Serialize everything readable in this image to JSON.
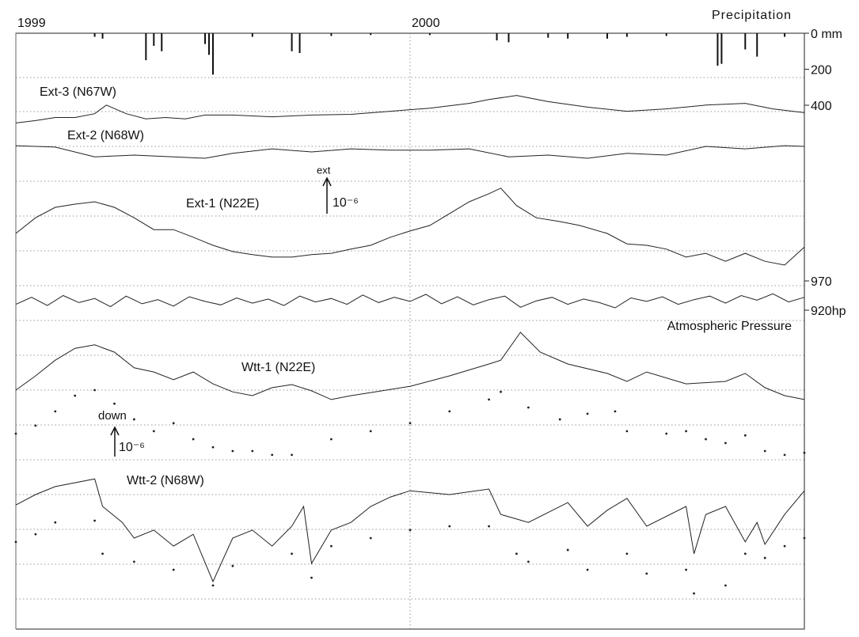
{
  "chart_data": [
    {
      "type": "bar",
      "title": "Precipitation",
      "xlim": [
        1999,
        2001
      ],
      "xticks": [
        1999,
        2000
      ],
      "ylim": [
        0,
        400
      ],
      "yticks": [
        {
          "value": 0,
          "label": "0 mm"
        },
        200,
        400
      ],
      "inverted": true,
      "color": "#111",
      "x": [
        1999.2,
        1999.22,
        1999.33,
        1999.35,
        1999.37,
        1999.48,
        1999.49,
        1999.5,
        1999.6,
        1999.7,
        1999.72,
        1999.8,
        1999.9,
        2000.05,
        2000.22,
        2000.25,
        2000.35,
        2000.4,
        2000.5,
        2000.55,
        2000.65,
        2000.78,
        2000.79,
        2000.85,
        2000.88,
        2000.95
      ],
      "values": [
        20,
        30,
        150,
        70,
        100,
        60,
        120,
        230,
        20,
        100,
        110,
        15,
        10,
        10,
        40,
        50,
        25,
        30,
        30,
        20,
        15,
        180,
        170,
        90,
        130,
        20
      ]
    },
    {
      "type": "line",
      "label": "Ext-3 (N67W)",
      "ylim": [
        0,
        2
      ],
      "color": "#222",
      "x": [
        1999.0,
        1999.05,
        1999.1,
        1999.15,
        1999.2,
        1999.23,
        1999.28,
        1999.33,
        1999.38,
        1999.43,
        1999.48,
        1999.55,
        1999.65,
        1999.75,
        1999.85,
        1999.95,
        2000.05,
        2000.15,
        2000.2,
        2000.27,
        2000.35,
        2000.45,
        2000.55,
        2000.65,
        2000.75,
        2000.85,
        2000.92,
        2001.0
      ],
      "values": [
        0.68,
        0.75,
        0.84,
        0.84,
        0.95,
        1.2,
        0.95,
        0.8,
        0.84,
        0.8,
        0.91,
        0.91,
        0.86,
        0.91,
        0.93,
        1.02,
        1.11,
        1.25,
        1.36,
        1.48,
        1.3,
        1.14,
        1.02,
        1.09,
        1.2,
        1.25,
        1.09,
        0.98
      ]
    },
    {
      "type": "line",
      "label": "Ext-2 (N68W)",
      "ylim": [
        0,
        2
      ],
      "color": "#222",
      "x": [
        1999.0,
        1999.1,
        1999.2,
        1999.3,
        1999.4,
        1999.48,
        1999.55,
        1999.65,
        1999.75,
        1999.85,
        1999.95,
        2000.05,
        2000.15,
        2000.25,
        2000.35,
        2000.45,
        2000.55,
        2000.65,
        2000.75,
        2000.85,
        2000.95,
        2001.0
      ],
      "values": [
        1.02,
        0.98,
        0.7,
        0.75,
        0.7,
        0.66,
        0.8,
        0.93,
        0.84,
        0.93,
        0.89,
        0.89,
        0.93,
        0.7,
        0.75,
        0.66,
        0.8,
        0.75,
        1.0,
        0.93,
        1.02,
        1.0
      ]
    },
    {
      "type": "line",
      "label": "Ext-1 (N22E)",
      "annotations": [
        "ext",
        "10⁻⁶"
      ],
      "ylim": [
        0,
        3
      ],
      "color": "#222",
      "x": [
        1999.0,
        1999.05,
        1999.1,
        1999.15,
        1999.2,
        1999.25,
        1999.3,
        1999.35,
        1999.4,
        1999.45,
        1999.5,
        1999.55,
        1999.6,
        1999.65,
        1999.7,
        1999.75,
        1999.8,
        1999.85,
        1999.9,
        1999.95,
        2000.0,
        2000.05,
        2000.1,
        2000.15,
        2000.2,
        2000.23,
        2000.27,
        2000.32,
        2000.38,
        2000.43,
        2000.5,
        2000.55,
        2000.6,
        2000.65,
        2000.7,
        2000.75,
        2000.8,
        2000.85,
        2000.9,
        2000.95,
        2001.0
      ],
      "values": [
        1.5,
        1.95,
        2.25,
        2.34,
        2.41,
        2.25,
        1.95,
        1.61,
        1.61,
        1.39,
        1.16,
        0.98,
        0.89,
        0.82,
        0.82,
        0.89,
        0.93,
        1.05,
        1.16,
        1.39,
        1.57,
        1.73,
        2.07,
        2.41,
        2.64,
        2.8,
        2.3,
        1.95,
        1.84,
        1.73,
        1.5,
        1.2,
        1.16,
        1.05,
        0.82,
        0.93,
        0.7,
        0.93,
        0.7,
        0.59,
        1.11
      ]
    },
    {
      "type": "line",
      "label": "Atmospheric Pressure",
      "ylim": [
        920,
        970
      ],
      "yticks": [
        970,
        {
          "value": 920,
          "label": "920hp"
        }
      ],
      "color": "#222",
      "x": [
        1999.0,
        1999.04,
        1999.08,
        1999.12,
        1999.16,
        1999.2,
        1999.24,
        1999.28,
        1999.32,
        1999.36,
        1999.4,
        1999.44,
        1999.48,
        1999.52,
        1999.56,
        1999.6,
        1999.64,
        1999.68,
        1999.72,
        1999.76,
        1999.8,
        1999.84,
        1999.88,
        1999.92,
        1999.96,
        2000.0,
        2000.04,
        2000.08,
        2000.12,
        2000.16,
        2000.2,
        2000.24,
        2000.28,
        2000.32,
        2000.36,
        2000.4,
        2000.44,
        2000.48,
        2000.52,
        2000.56,
        2000.6,
        2000.64,
        2000.68,
        2000.72,
        2000.76,
        2000.8,
        2000.84,
        2000.88,
        2000.92,
        2000.96,
        2001.0
      ],
      "values": [
        930,
        942,
        928,
        945,
        933,
        940,
        926,
        944,
        931,
        938,
        927,
        943,
        935,
        929,
        941,
        932,
        939,
        928,
        944,
        934,
        940,
        930,
        946,
        933,
        942,
        935,
        947,
        931,
        943,
        929,
        938,
        944,
        925,
        936,
        942,
        930,
        939,
        933,
        924,
        941,
        935,
        943,
        930,
        938,
        944,
        932,
        945,
        937,
        948,
        934,
        942
      ]
    },
    {
      "type": "line",
      "label": "Wtt-1 (N22E)",
      "ylim": [
        0,
        3
      ],
      "color": "#222",
      "x": [
        1999.0,
        1999.05,
        1999.1,
        1999.15,
        1999.2,
        1999.25,
        1999.3,
        1999.35,
        1999.4,
        1999.45,
        1999.5,
        1999.55,
        1999.6,
        1999.65,
        1999.7,
        1999.75,
        1999.8,
        1999.85,
        1999.9,
        2000.0,
        2000.1,
        2000.2,
        2000.23,
        2000.28,
        2000.33,
        2000.4,
        2000.5,
        2000.55,
        2000.6,
        2000.7,
        2000.8,
        2000.85,
        2000.9,
        2000.95,
        2001.0
      ],
      "values": [
        1.0,
        1.41,
        1.86,
        2.2,
        2.3,
        2.09,
        1.64,
        1.52,
        1.3,
        1.52,
        1.18,
        0.95,
        0.84,
        1.07,
        1.16,
        0.98,
        0.73,
        0.84,
        0.93,
        1.11,
        1.41,
        1.75,
        1.86,
        2.66,
        2.09,
        1.75,
        1.48,
        1.25,
        1.52,
        1.18,
        1.25,
        1.48,
        1.07,
        0.84,
        0.73
      ]
    },
    {
      "type": "scatter",
      "annotations": [
        "down",
        "10⁻⁶"
      ],
      "ylim": [
        0,
        2
      ],
      "color": "#222",
      "x": [
        1999.0,
        1999.05,
        1999.1,
        1999.15,
        1999.2,
        1999.25,
        1999.3,
        1999.35,
        1999.4,
        1999.45,
        1999.5,
        1999.55,
        1999.6,
        1999.65,
        1999.7,
        1999.8,
        1999.9,
        2000.0,
        2000.1,
        2000.2,
        2000.23,
        2000.3,
        2000.38,
        2000.45,
        2000.52,
        2000.55,
        2000.65,
        2000.7,
        2000.75,
        2000.8,
        2000.85,
        2000.9,
        2000.95,
        2001.0
      ],
      "values": [
        0.75,
        0.98,
        1.39,
        1.84,
        2.0,
        1.61,
        1.16,
        0.82,
        1.05,
        0.59,
        0.36,
        0.25,
        0.25,
        0.14,
        0.14,
        0.59,
        0.82,
        1.05,
        1.39,
        1.73,
        1.95,
        1.5,
        1.16,
        1.32,
        1.39,
        0.82,
        0.75,
        0.82,
        0.59,
        0.48,
        0.7,
        0.25,
        0.14,
        0.2
      ]
    },
    {
      "type": "line",
      "label": "Wtt-2 (N68W)",
      "ylim": [
        0,
        4
      ],
      "color": "#222",
      "x": [
        1999.0,
        1999.05,
        1999.1,
        1999.2,
        1999.22,
        1999.27,
        1999.3,
        1999.35,
        1999.4,
        1999.45,
        1999.5,
        1999.55,
        1999.6,
        1999.65,
        1999.7,
        1999.73,
        1999.75,
        1999.8,
        1999.85,
        1999.9,
        1999.95,
        2000.0,
        2000.1,
        2000.2,
        2000.23,
        2000.3,
        2000.4,
        2000.45,
        2000.5,
        2000.55,
        2000.6,
        2000.7,
        2000.72,
        2000.75,
        2000.8,
        2000.85,
        2000.88,
        2000.9,
        2000.95,
        2001.0
      ],
      "values": [
        2.7,
        3.0,
        3.23,
        3.45,
        2.66,
        2.2,
        1.75,
        1.98,
        1.52,
        1.86,
        0.5,
        1.75,
        1.98,
        1.52,
        2.09,
        2.66,
        1.02,
        1.98,
        2.2,
        2.66,
        2.93,
        3.11,
        3.0,
        3.16,
        2.43,
        2.2,
        2.77,
        2.09,
        2.55,
        2.89,
        2.09,
        2.66,
        1.3,
        2.43,
        2.66,
        1.64,
        2.2,
        1.57,
        2.43,
        3.11
      ]
    },
    {
      "type": "scatter",
      "ylim": [
        0,
        3
      ],
      "color": "#222",
      "x": [
        1999.0,
        1999.05,
        1999.1,
        1999.2,
        1999.22,
        1999.3,
        1999.4,
        1999.5,
        1999.55,
        1999.7,
        1999.75,
        1999.8,
        1999.9,
        2000.0,
        2000.1,
        2000.2,
        2000.27,
        2000.3,
        2000.4,
        2000.45,
        2000.55,
        2000.6,
        2000.7,
        2000.72,
        2000.8,
        2000.85,
        2000.9,
        2000.95,
        2001.0
      ],
      "values": [
        1.64,
        1.86,
        2.2,
        2.25,
        1.3,
        1.07,
        0.84,
        0.39,
        0.95,
        1.3,
        0.61,
        1.52,
        1.75,
        1.98,
        2.09,
        2.09,
        1.3,
        1.07,
        1.41,
        0.84,
        1.3,
        0.73,
        0.84,
        0.16,
        0.39,
        1.3,
        1.18,
        1.52,
        1.75
      ]
    }
  ]
}
